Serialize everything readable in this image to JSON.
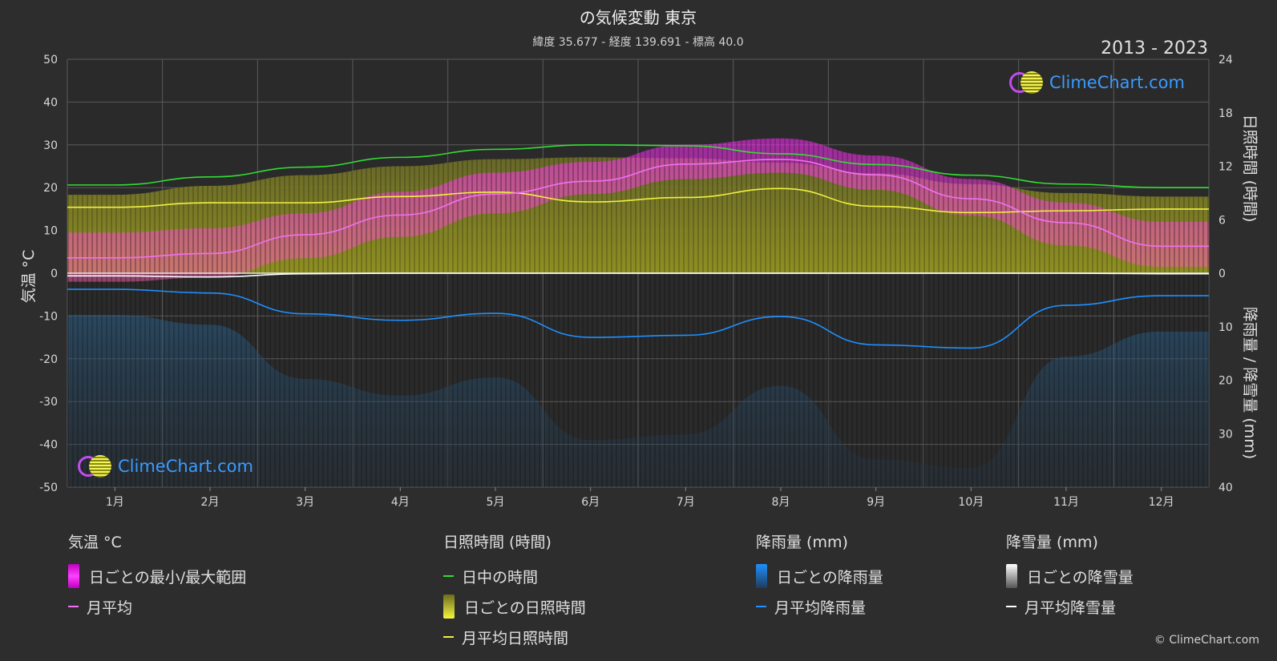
{
  "header": {
    "title": "の気候変動 東京",
    "subtitle": "緯度 35.677 - 経度 139.691 - 標高 40.0",
    "year_range": "2013 - 2023"
  },
  "brand": {
    "name": "ClimeChart.com",
    "copyright": "© ClimeChart.com"
  },
  "chart_data": {
    "type": "area",
    "months": [
      "1月",
      "2月",
      "3月",
      "4月",
      "5月",
      "6月",
      "7月",
      "8月",
      "9月",
      "10月",
      "11月",
      "12月"
    ],
    "axes": {
      "left_label": "気温 °C",
      "left_ticks": [
        50,
        40,
        30,
        20,
        10,
        0,
        -10,
        -20,
        -30,
        -40,
        -50
      ],
      "left_range": [
        -50,
        50
      ],
      "right_top_label": "日照時間 (時間)",
      "right_top_ticks": [
        24,
        18,
        12,
        6,
        0
      ],
      "right_top_range": [
        0,
        24
      ],
      "right_bottom_label": "降雨量 / 降雪量 (mm)",
      "right_bottom_ticks": [
        10,
        20,
        30,
        40
      ],
      "right_bottom_range": [
        0,
        40
      ]
    },
    "series": {
      "daylight_hours": [
        9.9,
        10.8,
        11.9,
        13.0,
        13.9,
        14.4,
        14.3,
        13.4,
        12.2,
        11.0,
        10.0,
        9.6
      ],
      "sunshine_daily_upper_hours": [
        8.8,
        9.8,
        11.0,
        12.0,
        12.8,
        13.0,
        12.9,
        12.4,
        11.2,
        10.0,
        9.0,
        8.6
      ],
      "sunshine_monthly_avg_hours": [
        7.4,
        7.9,
        7.9,
        8.6,
        9.1,
        8.0,
        8.5,
        9.5,
        7.5,
        6.8,
        7.0,
        7.2
      ],
      "temp_monthly_avg_c": [
        3.6,
        4.6,
        9.0,
        13.6,
        18.5,
        21.5,
        25.5,
        26.6,
        23.0,
        17.4,
        11.8,
        6.3
      ],
      "temp_daily_max_c": [
        9.5,
        10.5,
        14.0,
        19.0,
        23.5,
        26.0,
        30.0,
        31.5,
        27.5,
        22.0,
        16.5,
        12.0
      ],
      "temp_daily_min_c": [
        -2.0,
        -1.0,
        3.5,
        8.5,
        14.0,
        18.5,
        22.0,
        23.5,
        19.5,
        13.5,
        6.5,
        1.5
      ],
      "rain_monthly_avg_mm": [
        3.0,
        3.7,
        7.6,
        8.8,
        7.5,
        12.0,
        11.6,
        8.1,
        13.4,
        14.0,
        6.0,
        4.2
      ],
      "snow_monthly_avg_mm": [
        0.5,
        0.7,
        0.1,
        0.0,
        0.0,
        0.0,
        0.0,
        0.0,
        0.0,
        0.0,
        0.0,
        0.1
      ]
    },
    "colors": {
      "daylight": "#33dd33",
      "sunshine_avg": "#f0f040",
      "temp_avg": "#f070f0",
      "temp_range": "#e01fe0",
      "rain": "#1e90ff",
      "snow": "#ffffff"
    },
    "legend": [
      {
        "header": "気温 °C",
        "items": [
          {
            "label": "日ごとの最小/最大範囲",
            "swatch": "range"
          },
          {
            "label": "月平均",
            "swatch": "temp-line"
          }
        ]
      },
      {
        "header": "日照時間 (時間)",
        "items": [
          {
            "label": "日中の時間",
            "swatch": "daylight-line"
          },
          {
            "label": "日ごとの日照時間",
            "swatch": "sun-box"
          },
          {
            "label": "月平均日照時間",
            "swatch": "sun-line"
          }
        ]
      },
      {
        "header": "降雨量 (mm)",
        "items": [
          {
            "label": "日ごとの降雨量",
            "swatch": "rain-box"
          },
          {
            "label": "月平均降雨量",
            "swatch": "rain-line"
          }
        ]
      },
      {
        "header": "降雪量 (mm)",
        "items": [
          {
            "label": "日ごとの降雪量",
            "swatch": "snow-box"
          },
          {
            "label": "月平均降雪量",
            "swatch": "snow-line"
          }
        ]
      }
    ]
  }
}
